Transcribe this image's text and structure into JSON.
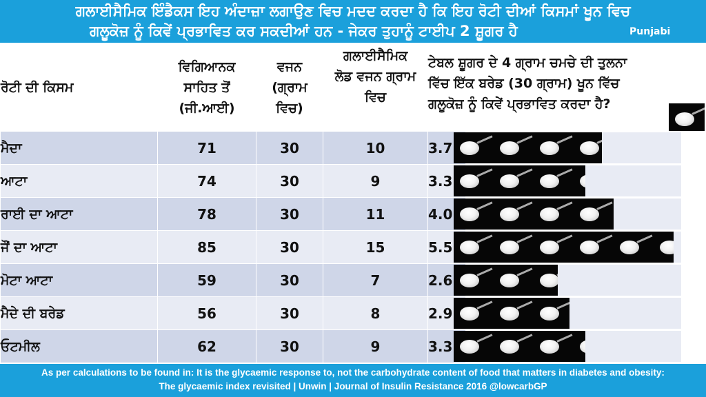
{
  "title": {
    "line1": "ਗਲਾਈਸੈਮਿਕ ਇੰਡੈਕਸ ਇਹ ਅੰਦਾਜ਼ਾ ਲਗਾਉਣ ਵਿਚ ਮਦਦ ਕਰਦਾ ਹੈ ਕਿ ਇਹ ਰੋਟੀ ਦੀਆਂ ਕਿਸਮਾਂ ਖੂਨ ਵਿਚ",
    "line2": "ਗਲੂਕੋਜ਼ ਨੂੰ ਕਿਵੇਂ ਪ੍ਰਭਾਵਿਤ ਕਰ ਸਕਦੀਆਂ ਹਨ - ਜੇਕਰ ਤੁਹਾਨੂੰ ਟਾਈਪ 2 ਸ਼ੂਗਰ ਹੈ",
    "language": "Punjabi"
  },
  "table": {
    "headers": {
      "type": "ਰੋਟੀ ਦੀ ਕਿਸਮ",
      "gi": [
        "ਵਿਗਿਆਨਕ",
        "ਸਾਹਿਤ ਤੋਂ",
        "(ਜੀ.ਆਈ)"
      ],
      "weight": [
        "ਵਜਨ",
        "(ਗ੍ਰਾਮ",
        "ਵਿਚ)"
      ],
      "load": [
        "ਗਲਾਈਸੈਮਿਕ",
        "ਲੋਡ ਵਜਨ ਗ੍ਰਾਮ",
        "ਵਿਚ"
      ],
      "compare": [
        "ਟੇਬਲ ਸ਼ੂਗਰ ਦੇ 4 ਗ੍ਰਾਮ ਚਮਚੇ ਦੀ ਤੁਲਨਾ",
        "ਵਿੱਚ ਇੱਕ ਬਰੇਡ (30 ਗ੍ਰਾਮ) ਖੂਨ ਵਿੱਚ",
        "ਗਲੂਕੋਜ਼ ਨੂੰ ਕਿਵੇਂ ਪ੍ਰਭਾਵਿਤ ਕਰਦਾ ਹੈ?"
      ]
    },
    "spoon_icon": "teaspoon-of-sugar-icon",
    "rows": [
      {
        "name": "ਮੈਦਾ",
        "gi": "71",
        "weight": "30",
        "load": "10",
        "spoons": "3.7"
      },
      {
        "name": "ਆਟਾ",
        "gi": "74",
        "weight": "30",
        "load": "9",
        "spoons": "3.3"
      },
      {
        "name": "ਰਾਈ ਦਾ ਆਟਾ",
        "gi": "78",
        "weight": "30",
        "load": "11",
        "spoons": "4.0"
      },
      {
        "name": "ਜੌਂ ਦਾ ਆਟਾ",
        "gi": "85",
        "weight": "30",
        "load": "15",
        "spoons": "5.5"
      },
      {
        "name": "ਮੋਟਾ ਆਟਾ",
        "gi": "59",
        "weight": "30",
        "load": "7",
        "spoons": "2.6"
      },
      {
        "name": "ਮੈਦੇ ਦੀ ਬਰੇਡ",
        "gi": "56",
        "weight": "30",
        "load": "8",
        "spoons": "2.9"
      },
      {
        "name": "ਓਟਮੀਲ",
        "gi": "62",
        "weight": "30",
        "load": "9",
        "spoons": "3.3"
      }
    ]
  },
  "footer": {
    "line1": "As per calculations to be found in: It is the glycaemic response to, not the carbohydrate content of food that matters in diabetes and obesity:",
    "line2": "The glycaemic index revisited | Unwin | Journal of Insulin Resistance 2016   @lowcarbGP"
  },
  "colors": {
    "banner": "#1ba0db",
    "row_dark": "#cfd6e8",
    "row_light": "#e8ebf4",
    "text": "#111111"
  }
}
